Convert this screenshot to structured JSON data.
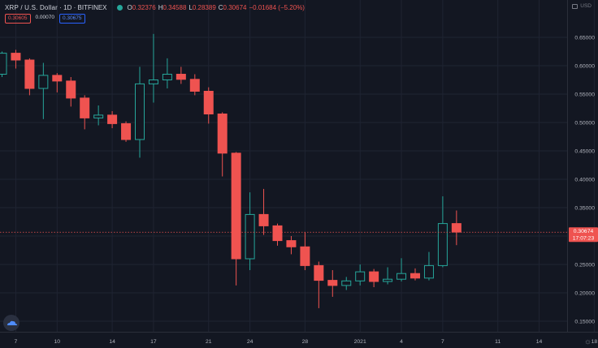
{
  "header": {
    "symbol": "XRP / U.S. Dollar",
    "interval": "1D",
    "exchange": "BITFINEX",
    "status_color": "#26a69a",
    "ohlc": [
      {
        "key": "O",
        "value": "0.32376"
      },
      {
        "key": "H",
        "value": "0.34588"
      },
      {
        "key": "L",
        "value": "0.28389"
      },
      {
        "key": "C",
        "value": "0.30674"
      }
    ],
    "change": "−0.01684 (−5.20%)"
  },
  "quote": {
    "bid": "0.30605",
    "spread": "0.00070",
    "ask": "0.30675"
  },
  "currency": "USD",
  "colors": {
    "background": "#131722",
    "grid": "#1f2432",
    "up": "#26a69a",
    "down": "#ef5350",
    "text": "#b2b5be"
  },
  "chart_data": {
    "type": "candlestick",
    "xlabel": "",
    "ylabel": "",
    "ylim": [
      0.13,
      0.68
    ],
    "grid": true,
    "y_ticks": [
      "0.15000",
      "0.20000",
      "0.25000",
      "0.30000",
      "0.35000",
      "0.40000",
      "0.45000",
      "0.50000",
      "0.55000",
      "0.60000",
      "0.65000"
    ],
    "x_ticks": [
      {
        "i": 1,
        "label": "7"
      },
      {
        "i": 4,
        "label": "10"
      },
      {
        "i": 8,
        "label": "14"
      },
      {
        "i": 11,
        "label": "17"
      },
      {
        "i": 15,
        "label": "21"
      },
      {
        "i": 18,
        "label": "24"
      },
      {
        "i": 22,
        "label": "28"
      },
      {
        "i": 26,
        "label": "2021"
      },
      {
        "i": 29,
        "label": "4"
      },
      {
        "i": 32,
        "label": "7"
      },
      {
        "i": 36,
        "label": "11"
      },
      {
        "i": 39,
        "label": "14"
      },
      {
        "i": 43,
        "label": "18"
      }
    ],
    "last_price": "0.30674",
    "countdown": "17:07:23",
    "candles": [
      {
        "o": 0.585,
        "h": 0.625,
        "l": 0.58,
        "c": 0.622
      },
      {
        "o": 0.622,
        "h": 0.628,
        "l": 0.595,
        "c": 0.61
      },
      {
        "o": 0.61,
        "h": 0.613,
        "l": 0.548,
        "c": 0.56
      },
      {
        "o": 0.56,
        "h": 0.605,
        "l": 0.506,
        "c": 0.583
      },
      {
        "o": 0.583,
        "h": 0.587,
        "l": 0.553,
        "c": 0.573
      },
      {
        "o": 0.573,
        "h": 0.58,
        "l": 0.528,
        "c": 0.543
      },
      {
        "o": 0.543,
        "h": 0.548,
        "l": 0.488,
        "c": 0.508
      },
      {
        "o": 0.508,
        "h": 0.53,
        "l": 0.495,
        "c": 0.513
      },
      {
        "o": 0.513,
        "h": 0.52,
        "l": 0.49,
        "c": 0.498
      },
      {
        "o": 0.498,
        "h": 0.502,
        "l": 0.466,
        "c": 0.47
      },
      {
        "o": 0.47,
        "h": 0.598,
        "l": 0.438,
        "c": 0.568
      },
      {
        "o": 0.568,
        "h": 0.656,
        "l": 0.535,
        "c": 0.575
      },
      {
        "o": 0.575,
        "h": 0.613,
        "l": 0.56,
        "c": 0.585
      },
      {
        "o": 0.585,
        "h": 0.598,
        "l": 0.568,
        "c": 0.576
      },
      {
        "o": 0.576,
        "h": 0.585,
        "l": 0.548,
        "c": 0.555
      },
      {
        "o": 0.555,
        "h": 0.562,
        "l": 0.498,
        "c": 0.515
      },
      {
        "o": 0.515,
        "h": 0.518,
        "l": 0.405,
        "c": 0.446
      },
      {
        "o": 0.446,
        "h": 0.448,
        "l": 0.213,
        "c": 0.26
      },
      {
        "o": 0.26,
        "h": 0.377,
        "l": 0.24,
        "c": 0.338
      },
      {
        "o": 0.338,
        "h": 0.383,
        "l": 0.302,
        "c": 0.318
      },
      {
        "o": 0.318,
        "h": 0.322,
        "l": 0.283,
        "c": 0.292
      },
      {
        "o": 0.292,
        "h": 0.3,
        "l": 0.268,
        "c": 0.281
      },
      {
        "o": 0.281,
        "h": 0.307,
        "l": 0.24,
        "c": 0.248
      },
      {
        "o": 0.248,
        "h": 0.255,
        "l": 0.173,
        "c": 0.222
      },
      {
        "o": 0.222,
        "h": 0.24,
        "l": 0.193,
        "c": 0.213
      },
      {
        "o": 0.213,
        "h": 0.228,
        "l": 0.205,
        "c": 0.221
      },
      {
        "o": 0.221,
        "h": 0.25,
        "l": 0.213,
        "c": 0.237
      },
      {
        "o": 0.237,
        "h": 0.242,
        "l": 0.21,
        "c": 0.22
      },
      {
        "o": 0.22,
        "h": 0.245,
        "l": 0.215,
        "c": 0.224
      },
      {
        "o": 0.224,
        "h": 0.261,
        "l": 0.22,
        "c": 0.234
      },
      {
        "o": 0.234,
        "h": 0.243,
        "l": 0.222,
        "c": 0.226
      },
      {
        "o": 0.226,
        "h": 0.272,
        "l": 0.222,
        "c": 0.248
      },
      {
        "o": 0.248,
        "h": 0.37,
        "l": 0.245,
        "c": 0.322
      },
      {
        "o": 0.322,
        "h": 0.345,
        "l": 0.284,
        "c": 0.307
      }
    ]
  }
}
